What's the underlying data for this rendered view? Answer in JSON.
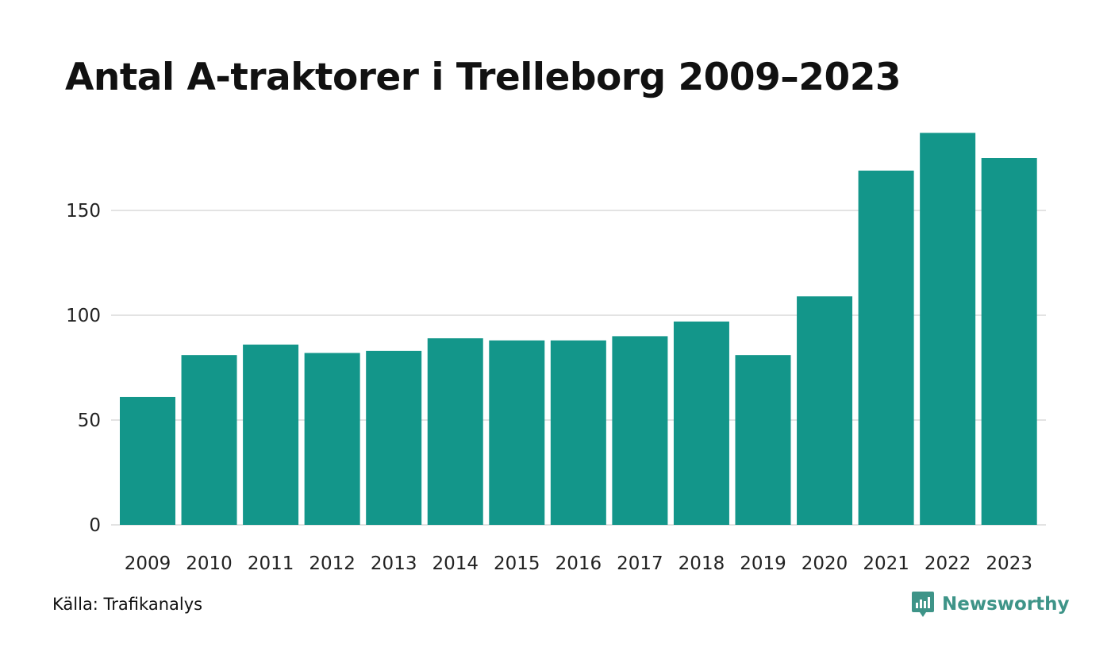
{
  "colors": {
    "bar": "#13968a",
    "grid": "#e3e3e3",
    "brand": "#3e9488",
    "text": "#111111"
  },
  "footer": {
    "source": "Källa: Trafikanalys",
    "brand_name": "Newsworthy",
    "brand_icon": "newsworthy-chart-bubble-icon"
  },
  "chart_data": {
    "type": "bar",
    "title": "Antal A-traktorer i Trelleborg 2009–2023",
    "xlabel": "",
    "ylabel": "",
    "categories": [
      "2009",
      "2010",
      "2011",
      "2012",
      "2013",
      "2014",
      "2015",
      "2016",
      "2017",
      "2018",
      "2019",
      "2020",
      "2021",
      "2022",
      "2023"
    ],
    "values": [
      61,
      81,
      86,
      82,
      83,
      89,
      88,
      88,
      90,
      97,
      81,
      109,
      169,
      187,
      175
    ],
    "ylim": [
      0,
      200
    ],
    "yticks": [
      0,
      50,
      100,
      150
    ],
    "grid": true,
    "legend": "none"
  }
}
